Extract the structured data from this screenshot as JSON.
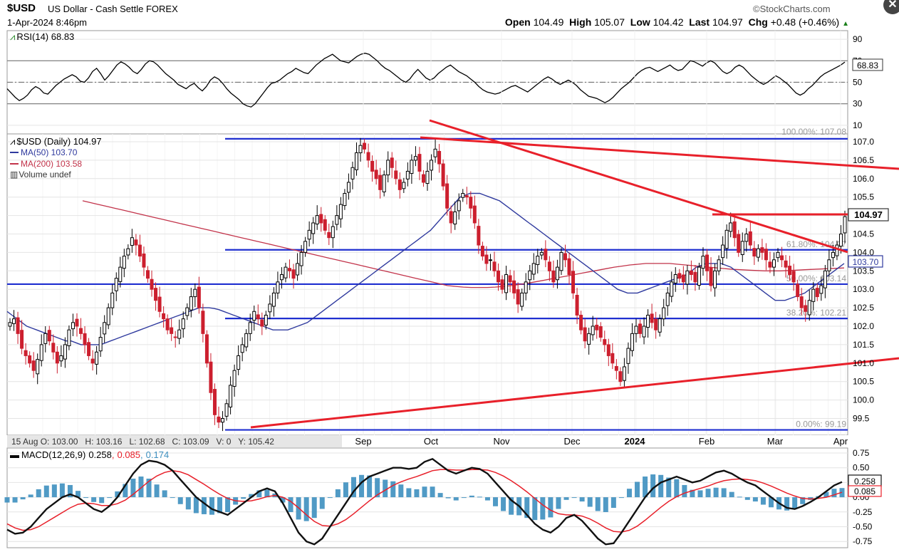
{
  "header": {
    "symbol": "$USD",
    "description": "US Dollar - Cash Settle FOREX",
    "date": "1-Apr-2024 8:46pm",
    "watermark": "©StockCharts.com",
    "open_label": "Open",
    "open": "104.49",
    "high_label": "High",
    "high": "105.07",
    "low_label": "Low",
    "low": "104.42",
    "last_label": "Last",
    "last": "104.97",
    "chg_label": "Chg",
    "chg": "+0.48 (+0.46%)",
    "close_glyph": "✕"
  },
  "colors": {
    "price": "#000000",
    "ma50": "#2f3a9e",
    "ma200": "#c2334a",
    "trend": "#e8202a",
    "fib": "#1f2fd0",
    "macd_hist": "#3d8fbf",
    "signal": "#e8202a",
    "up_candle": "#000000",
    "down_candle": "#cc1f2e"
  },
  "chart_data": [
    {
      "type": "line",
      "panel": "RSI",
      "legend": "RSI(14) 68.83",
      "last_value": "68.83",
      "yticks": [
        "90",
        "70",
        "50",
        "30",
        "10"
      ],
      "ylim": [
        10,
        90
      ],
      "reference_lines": [
        70,
        50,
        30
      ],
      "series": [
        {
          "values": [
            44,
            40,
            36,
            33,
            35,
            38,
            43,
            46,
            44,
            40,
            39,
            43,
            47,
            50,
            53,
            55,
            57,
            55,
            51,
            50,
            54,
            60,
            63,
            58,
            52,
            56,
            61,
            66,
            69,
            67,
            64,
            60,
            58,
            62,
            67,
            70,
            69,
            66,
            62,
            58,
            55,
            52,
            48,
            46,
            44,
            47,
            49,
            45,
            42,
            46,
            52,
            55,
            53,
            49,
            44,
            40,
            37,
            34,
            30,
            28,
            27,
            30,
            35,
            40,
            45,
            49,
            50,
            52,
            55,
            58,
            60,
            63,
            61,
            59,
            58,
            62,
            66,
            69,
            72,
            74,
            76,
            73,
            70,
            69,
            68,
            71,
            74,
            76,
            77,
            76,
            73,
            70,
            66,
            63,
            61,
            58,
            55,
            52,
            50,
            53,
            58,
            62,
            58,
            54,
            52,
            54,
            58,
            61,
            64,
            66,
            63,
            60,
            58,
            56,
            53,
            50,
            46,
            43,
            41,
            40,
            39,
            40,
            42,
            44,
            46,
            47,
            45,
            43,
            41,
            44,
            47,
            50,
            53,
            55,
            53,
            50,
            48,
            50,
            52,
            50,
            47,
            43,
            40,
            37,
            36,
            35,
            33,
            31,
            33,
            36,
            40,
            44,
            47,
            50,
            54,
            58,
            61,
            63,
            64,
            62,
            60,
            62,
            64,
            66,
            63,
            61,
            62,
            66,
            70,
            69,
            67,
            65,
            68,
            70,
            68,
            64,
            60,
            58,
            60,
            64,
            66,
            64,
            60,
            56,
            53,
            50,
            48,
            50,
            53,
            56,
            54,
            51,
            48,
            44,
            40,
            38,
            40,
            44,
            47,
            51,
            55,
            58,
            60,
            62,
            64,
            66,
            68.83
          ]
        }
      ]
    },
    {
      "type": "candlestick",
      "panel": "Price",
      "title": "$USD (Daily) 104.97",
      "legend": [
        {
          "name": "MA(50) 103.70"
        },
        {
          "name": "MA(200) 103.58"
        },
        {
          "name": "Volume undef"
        }
      ],
      "x_labels": [
        "Sep",
        "Oct",
        "Nov",
        "Dec",
        "2024",
        "Feb",
        "Mar",
        "Apr"
      ],
      "yticks": [
        "107.0",
        "106.5",
        "106.0",
        "105.5",
        "105.0",
        "104.5",
        "104.0",
        "103.5",
        "103.0",
        "102.5",
        "102.0",
        "101.5",
        "101.0",
        "100.5",
        "100.0",
        "99.5"
      ],
      "ylim": [
        99.1,
        107.2
      ],
      "last_value": "104.97",
      "ma50_value": "103.70",
      "fib_levels": [
        {
          "label": "100.00%: 107.08",
          "value": 107.08
        },
        {
          "label": "61.80%: 104.07",
          "value": 104.07
        },
        {
          "label": "50.00%: 103.14",
          "value": 103.14
        },
        {
          "label": "38.20%: 102.21",
          "value": 102.21
        },
        {
          "label": "0.00%: 99.19",
          "value": 99.19
        }
      ],
      "hover_readout": "15 Aug O: 103.00   H: 103.16   L: 102.68   C: 103.09   V: 0   Y: 105.42",
      "close": [
        102.1,
        102.2,
        101.8,
        101.4,
        101.2,
        101.0,
        100.8,
        101.1,
        101.5,
        101.8,
        101.6,
        101.3,
        101.0,
        101.2,
        101.5,
        101.9,
        102.1,
        102.0,
        101.8,
        101.5,
        101.2,
        101.0,
        101.3,
        101.7,
        102.1,
        102.5,
        102.9,
        103.3,
        103.6,
        103.9,
        104.1,
        104.4,
        104.2,
        103.9,
        103.6,
        103.3,
        103.0,
        102.7,
        102.4,
        102.2,
        101.9,
        101.8,
        101.7,
        101.9,
        102.2,
        102.5,
        102.8,
        103.0,
        102.5,
        101.8,
        101.0,
        100.2,
        99.6,
        99.4,
        99.5,
        99.9,
        100.4,
        100.8,
        101.2,
        101.5,
        101.8,
        102.1,
        102.4,
        102.2,
        102.0,
        102.3,
        102.6,
        102.9,
        103.2,
        103.4,
        103.6,
        103.5,
        103.3,
        103.7,
        104.0,
        104.3,
        104.6,
        104.8,
        105.0,
        104.8,
        104.6,
        104.4,
        104.7,
        105.0,
        105.3,
        105.6,
        105.9,
        106.3,
        106.7,
        106.9,
        106.8,
        106.5,
        106.2,
        106.0,
        105.7,
        106.1,
        106.5,
        106.3,
        106.0,
        105.7,
        105.9,
        106.2,
        106.5,
        106.6,
        106.2,
        105.9,
        106.2,
        106.5,
        106.8,
        106.4,
        105.8,
        105.2,
        104.8,
        105.1,
        105.4,
        105.6,
        105.5,
        105.2,
        104.8,
        104.2,
        103.9,
        103.7,
        103.8,
        103.5,
        103.2,
        103.0,
        103.4,
        103.2,
        102.9,
        102.6,
        102.9,
        103.2,
        103.5,
        103.7,
        103.9,
        104.0,
        103.8,
        103.5,
        103.2,
        103.6,
        104.0,
        103.8,
        103.4,
        102.9,
        102.3,
        101.9,
        101.6,
        101.8,
        102.0,
        101.9,
        101.7,
        101.5,
        101.2,
        101.0,
        100.8,
        100.5,
        100.9,
        101.4,
        101.8,
        102.0,
        101.8,
        102.0,
        102.3,
        102.1,
        101.9,
        102.2,
        102.5,
        102.9,
        103.2,
        103.4,
        103.3,
        103.2,
        103.5,
        103.4,
        103.2,
        103.6,
        103.9,
        103.5,
        103.1,
        103.5,
        103.8,
        104.2,
        104.6,
        104.8,
        104.4,
        104.0,
        104.3,
        104.5,
        104.2,
        103.9,
        104.1,
        104.0,
        103.8,
        103.6,
        103.8,
        104.0,
        103.8,
        103.6,
        103.4,
        103.2,
        102.8,
        102.5,
        102.4,
        102.7,
        103.0,
        102.8,
        103.1,
        103.5,
        103.8,
        104.0,
        104.2,
        104.5,
        104.97
      ],
      "ma50": [
        102.4,
        102.3,
        102.2,
        102.1,
        102.0,
        101.95,
        101.9,
        101.85,
        101.8,
        101.75,
        101.7,
        101.65,
        101.6,
        101.6,
        101.55,
        101.5,
        101.5,
        101.5,
        101.5,
        101.5,
        101.55,
        101.6,
        101.65,
        101.7,
        101.75,
        101.8,
        101.85,
        101.9,
        101.95,
        102.0,
        102.05,
        102.1,
        102.15,
        102.2,
        102.25,
        102.3,
        102.35,
        102.4,
        102.45,
        102.5,
        102.5,
        102.5,
        102.48,
        102.45,
        102.4,
        102.35,
        102.3,
        102.25,
        102.2,
        102.15,
        102.1,
        102.05,
        102.0,
        101.95,
        101.9,
        101.9,
        101.9,
        101.9,
        101.95,
        102.0,
        102.05,
        102.1,
        102.2,
        102.3,
        102.4,
        102.5,
        102.6,
        102.7,
        102.8,
        102.9,
        103.0,
        103.1,
        103.2,
        103.3,
        103.4,
        103.5,
        103.6,
        103.7,
        103.8,
        103.9,
        104.0,
        104.1,
        104.2,
        104.3,
        104.4,
        104.5,
        104.6,
        104.75,
        104.9,
        105.05,
        105.2,
        105.35,
        105.5,
        105.55,
        105.6,
        105.6,
        105.6,
        105.55,
        105.5,
        105.45,
        105.4,
        105.3,
        105.2,
        105.1,
        105.0,
        104.9,
        104.8,
        104.7,
        104.6,
        104.5,
        104.4,
        104.3,
        104.2,
        104.1,
        104.0,
        103.9,
        103.8,
        103.7,
        103.6,
        103.5,
        103.4,
        103.3,
        103.2,
        103.1,
        103.0,
        102.95,
        102.9,
        102.9,
        102.9,
        102.95,
        103.0,
        103.05,
        103.1,
        103.15,
        103.2,
        103.25,
        103.3,
        103.35,
        103.4,
        103.5,
        103.6,
        103.65,
        103.7,
        103.7,
        103.7,
        103.7,
        103.65,
        103.6,
        103.5,
        103.4,
        103.3,
        103.2,
        103.1,
        103.0,
        102.9,
        102.8,
        102.7,
        102.7,
        102.7,
        102.75,
        102.8,
        102.85,
        102.9,
        103.0,
        103.1,
        103.2,
        103.3,
        103.4,
        103.5,
        103.6,
        103.7
      ],
      "ma200": [
        105.4,
        105.35,
        105.3,
        105.25,
        105.2,
        105.15,
        105.1,
        105.05,
        105.0,
        104.95,
        104.9,
        104.85,
        104.8,
        104.75,
        104.7,
        104.65,
        104.6,
        104.55,
        104.5,
        104.45,
        104.4,
        104.35,
        104.3,
        104.25,
        104.2,
        104.15,
        104.1,
        104.05,
        104.0,
        103.95,
        103.9,
        103.85,
        103.8,
        103.75,
        103.7,
        103.65,
        103.6,
        103.55,
        103.5,
        103.45,
        103.4,
        103.35,
        103.3,
        103.25,
        103.2,
        103.15,
        103.1,
        103.08,
        103.06,
        103.05,
        103.05,
        103.05,
        103.06,
        103.08,
        103.1,
        103.13,
        103.16,
        103.2,
        103.24,
        103.28,
        103.32,
        103.36,
        103.4,
        103.44,
        103.48,
        103.52,
        103.56,
        103.6,
        103.63,
        103.66,
        103.68,
        103.7,
        103.7,
        103.7,
        103.7,
        103.68,
        103.66,
        103.64,
        103.62,
        103.6,
        103.58,
        103.56,
        103.54,
        103.53,
        103.52,
        103.51,
        103.5,
        103.5,
        103.5,
        103.51,
        103.52,
        103.53,
        103.54,
        103.55,
        103.56,
        103.57,
        103.58
      ]
    },
    {
      "type": "line",
      "panel": "MACD",
      "legend_name": "MACD(12,26,9)",
      "macd_value": "0.258",
      "signal_value": "0.085",
      "hist_value": "0.174",
      "yticks": [
        "0.75",
        "0.50",
        "0.25",
        "0.00",
        "-0.25",
        "-0.50",
        "-0.75"
      ],
      "ylim": [
        -0.85,
        0.8
      ],
      "macd": [
        -0.55,
        -0.62,
        -0.6,
        -0.5,
        -0.35,
        -0.2,
        -0.1,
        0.0,
        0.05,
        0.0,
        -0.1,
        -0.2,
        -0.25,
        -0.15,
        0.0,
        0.2,
        0.4,
        0.55,
        0.62,
        0.6,
        0.55,
        0.45,
        0.3,
        0.15,
        0.0,
        -0.1,
        -0.2,
        -0.25,
        -0.3,
        -0.2,
        -0.1,
        0.0,
        0.1,
        0.15,
        0.1,
        -0.1,
        -0.35,
        -0.6,
        -0.75,
        -0.8,
        -0.7,
        -0.5,
        -0.3,
        -0.1,
        0.1,
        0.25,
        0.35,
        0.4,
        0.45,
        0.5,
        0.5,
        0.48,
        0.5,
        0.6,
        0.65,
        0.55,
        0.45,
        0.4,
        0.45,
        0.5,
        0.48,
        0.4,
        0.25,
        0.1,
        -0.05,
        -0.15,
        -0.3,
        -0.45,
        -0.55,
        -0.6,
        -0.5,
        -0.35,
        -0.3,
        -0.4,
        -0.55,
        -0.7,
        -0.8,
        -0.78,
        -0.6,
        -0.4,
        -0.2,
        0.0,
        0.15,
        0.25,
        0.3,
        0.35,
        0.3,
        0.25,
        0.28,
        0.35,
        0.42,
        0.45,
        0.4,
        0.32,
        0.25,
        0.2,
        0.1,
        0.0,
        -0.1,
        -0.18,
        -0.2,
        -0.15,
        -0.08,
        0.0,
        0.1,
        0.2,
        0.258
      ],
      "signal": [
        -0.45,
        -0.52,
        -0.56,
        -0.55,
        -0.5,
        -0.42,
        -0.34,
        -0.26,
        -0.18,
        -0.12,
        -0.1,
        -0.11,
        -0.14,
        -0.14,
        -0.11,
        -0.05,
        0.05,
        0.16,
        0.27,
        0.36,
        0.42,
        0.45,
        0.43,
        0.38,
        0.3,
        0.22,
        0.13,
        0.05,
        -0.02,
        -0.06,
        -0.07,
        -0.06,
        -0.03,
        0.01,
        0.03,
        0.0,
        -0.07,
        -0.18,
        -0.3,
        -0.41,
        -0.48,
        -0.49,
        -0.45,
        -0.38,
        -0.28,
        -0.17,
        -0.06,
        0.04,
        0.12,
        0.2,
        0.26,
        0.31,
        0.35,
        0.4,
        0.45,
        0.47,
        0.47,
        0.46,
        0.46,
        0.47,
        0.47,
        0.46,
        0.42,
        0.36,
        0.28,
        0.19,
        0.09,
        -0.02,
        -0.13,
        -0.22,
        -0.28,
        -0.3,
        -0.3,
        -0.32,
        -0.37,
        -0.44,
        -0.52,
        -0.58,
        -0.59,
        -0.56,
        -0.49,
        -0.39,
        -0.28,
        -0.17,
        -0.07,
        0.01,
        0.07,
        0.11,
        0.15,
        0.19,
        0.24,
        0.28,
        0.3,
        0.31,
        0.3,
        0.28,
        0.24,
        0.19,
        0.13,
        0.07,
        0.02,
        -0.02,
        -0.03,
        -0.02,
        0.0,
        0.04,
        0.085
      ]
    }
  ]
}
